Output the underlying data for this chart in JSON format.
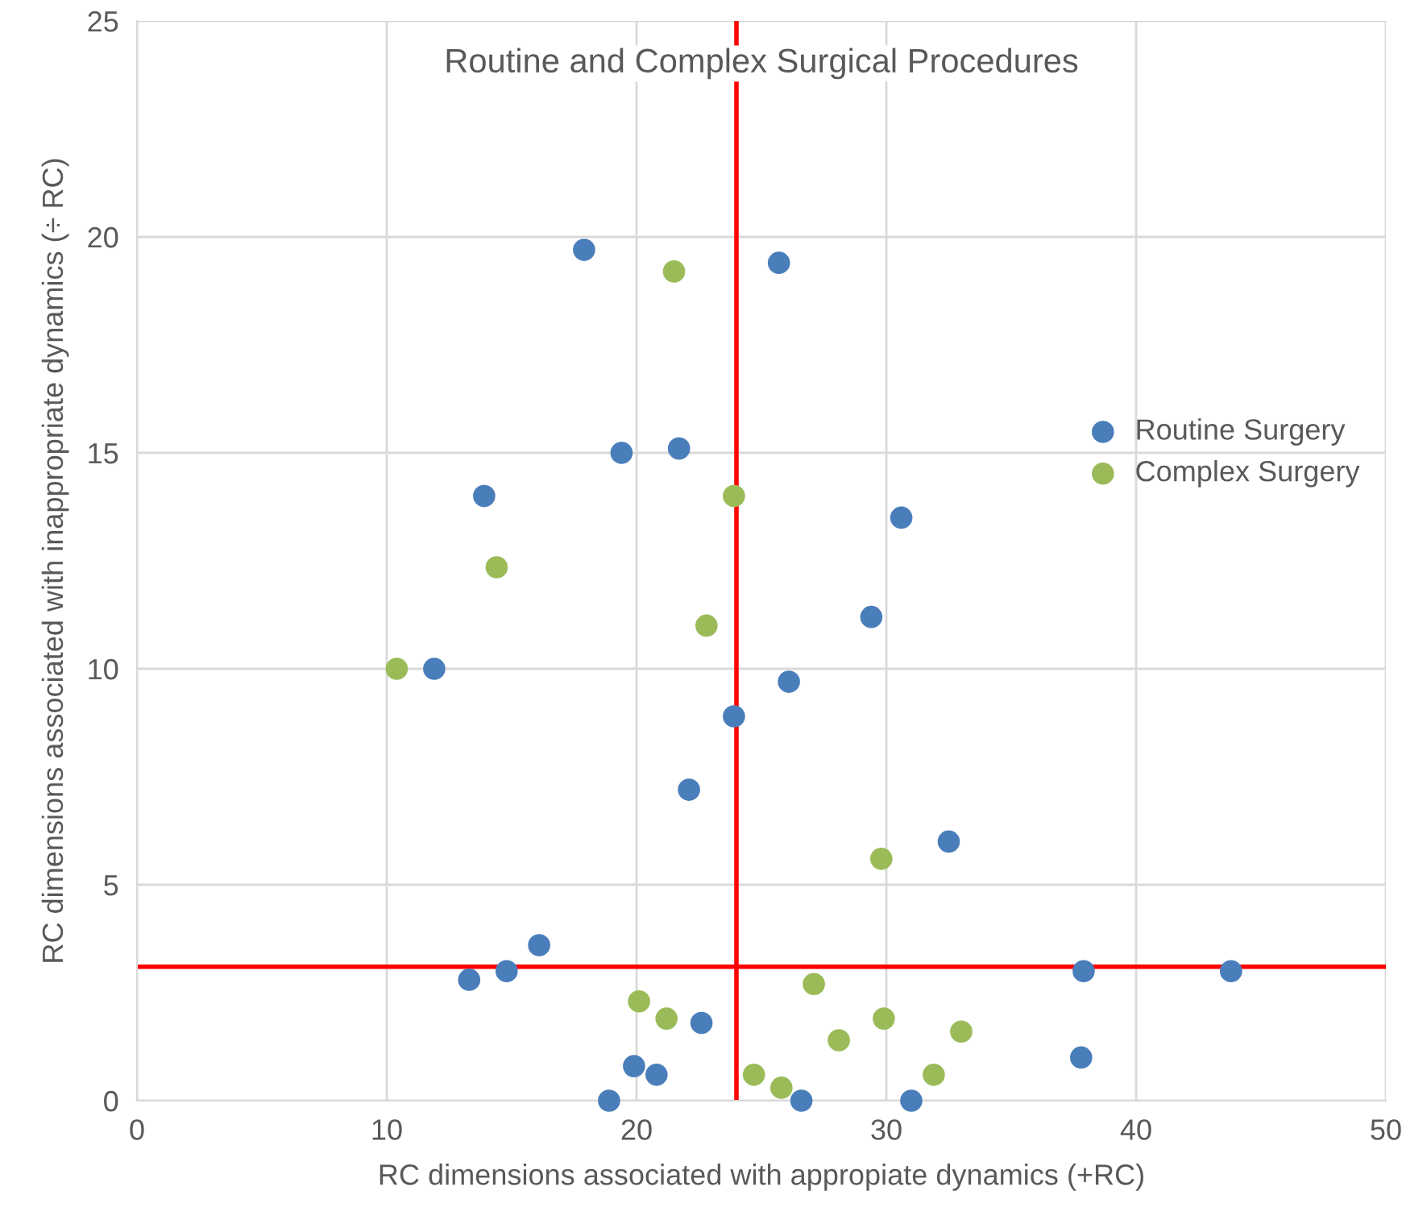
{
  "chart_data": {
    "type": "scatter",
    "title": "Routine and Complex Surgical Procedures",
    "xlabel": "RC dimensions associated with appropiate dynamics (+RC)",
    "ylabel": "RC dimensions associated with inappropriate dynamics (÷ RC)",
    "xlim": [
      0,
      50
    ],
    "ylim": [
      0,
      25
    ],
    "xticks": [
      0,
      10,
      20,
      30,
      40,
      50
    ],
    "yticks": [
      0,
      5,
      10,
      15,
      20,
      25
    ],
    "grid": true,
    "legend": "right",
    "marker": "circle",
    "series": [
      {
        "name": "Routine Surgery",
        "color": "#4a7ebb",
        "x": [
          17.9,
          25.7,
          21.7,
          19.4,
          13.9,
          30.6,
          29.4,
          11.9,
          26.1,
          23.9,
          22.1,
          32.5,
          16.1,
          14.8,
          13.3,
          22.6,
          19.9,
          20.8,
          18.9,
          26.6,
          31.0,
          37.9,
          43.8,
          37.8
        ],
        "values": [
          19.7,
          19.4,
          15.1,
          15.0,
          14.0,
          13.5,
          11.2,
          10.0,
          9.7,
          8.9,
          7.2,
          6.0,
          3.6,
          3.0,
          2.8,
          1.8,
          0.8,
          0.6,
          0,
          0,
          0,
          3.0,
          3.0,
          1.0
        ]
      },
      {
        "name": "Complex Surgery",
        "color": "#9bbb59",
        "x": [
          21.5,
          23.9,
          14.4,
          22.8,
          10.4,
          29.8,
          27.1,
          20.1,
          21.2,
          29.9,
          33.0,
          28.1,
          24.7,
          25.8,
          31.9
        ],
        "values": [
          19.2,
          14.0,
          12.35,
          11.0,
          10.0,
          5.6,
          2.7,
          2.3,
          1.9,
          1.9,
          1.6,
          1.4,
          0.6,
          0.3,
          0.6
        ]
      }
    ],
    "ref_lines": [
      {
        "axis": "x",
        "value": 24,
        "color": "#ff0000"
      },
      {
        "axis": "y",
        "value": 3.1,
        "color": "#ff0000"
      }
    ]
  }
}
